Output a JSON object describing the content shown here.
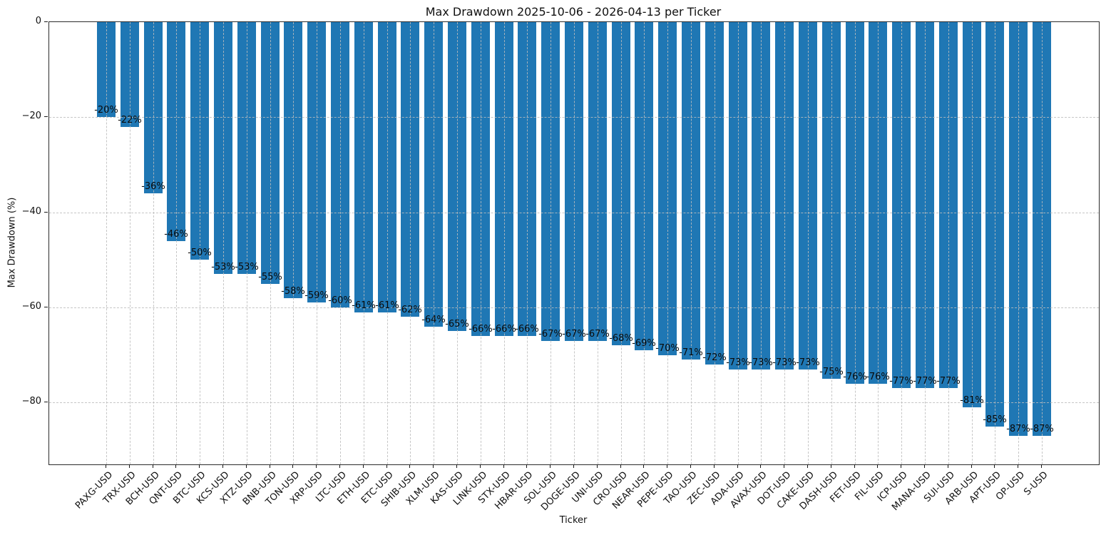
{
  "chart_data": {
    "type": "bar",
    "title": "Max Drawdown 2025-10-06 - 2026-04-13 per Ticker",
    "xlabel": "Ticker",
    "ylabel": "Max Drawdown (%)",
    "bar_color": "#1f77b4",
    "grid": true,
    "grid_style": "dashed",
    "legend_position": "none",
    "ylim": [
      -93,
      0
    ],
    "yticks": [
      {
        "v": 0,
        "label": "0"
      },
      {
        "v": -20,
        "label": "−20"
      },
      {
        "v": -40,
        "label": "−40"
      },
      {
        "v": -60,
        "label": "−60"
      },
      {
        "v": -80,
        "label": "−80"
      }
    ],
    "categories": [
      "PAXG-USD",
      "TRX-USD",
      "BCH-USD",
      "QNT-USD",
      "BTC-USD",
      "KCS-USD",
      "XTZ-USD",
      "BNB-USD",
      "TON-USD",
      "XRP-USD",
      "LTC-USD",
      "ETH-USD",
      "ETC-USD",
      "SHIB-USD",
      "XLM-USD",
      "KAS-USD",
      "LINK-USD",
      "STX-USD",
      "HBAR-USD",
      "SOL-USD",
      "DOGE-USD",
      "UNI-USD",
      "CRO-USD",
      "NEAR-USD",
      "PEPE-USD",
      "TAO-USD",
      "ZEC-USD",
      "ADA-USD",
      "AVAX-USD",
      "DOT-USD",
      "CAKE-USD",
      "DASH-USD",
      "FET-USD",
      "FIL-USD",
      "ICP-USD",
      "MANA-USD",
      "SUI-USD",
      "ARB-USD",
      "APT-USD",
      "OP-USD",
      "S-USD"
    ],
    "values": [
      -20,
      -22,
      -36,
      -46,
      -50,
      -53,
      -53,
      -55,
      -58,
      -59,
      -60,
      -61,
      -61,
      -62,
      -64,
      -65,
      -66,
      -66,
      -66,
      -67,
      -67,
      -67,
      -68,
      -69,
      -70,
      -71,
      -72,
      -73,
      -73,
      -73,
      -73,
      -75,
      -76,
      -76,
      -77,
      -77,
      -77,
      -81,
      -85,
      -87,
      -87
    ],
    "bar_labels": [
      "-20%",
      "-22%",
      "-36%",
      "-46%",
      "-50%",
      "-53%",
      "-53%",
      "-55%",
      "-58%",
      "-59%",
      "-60%",
      "-61%",
      "-61%",
      "-62%",
      "-64%",
      "-65%",
      "-66%",
      "-66%",
      "-66%",
      "-67%",
      "-67%",
      "-67%",
      "-68%",
      "-69%",
      "-70%",
      "-71%",
      "-72%",
      "-73%",
      "-73%",
      "-73%",
      "-73%",
      "-75%",
      "-76%",
      "-76%",
      "-77%",
      "-77%",
      "-77%",
      "-81%",
      "-85%",
      "-87%",
      "-87%"
    ]
  }
}
